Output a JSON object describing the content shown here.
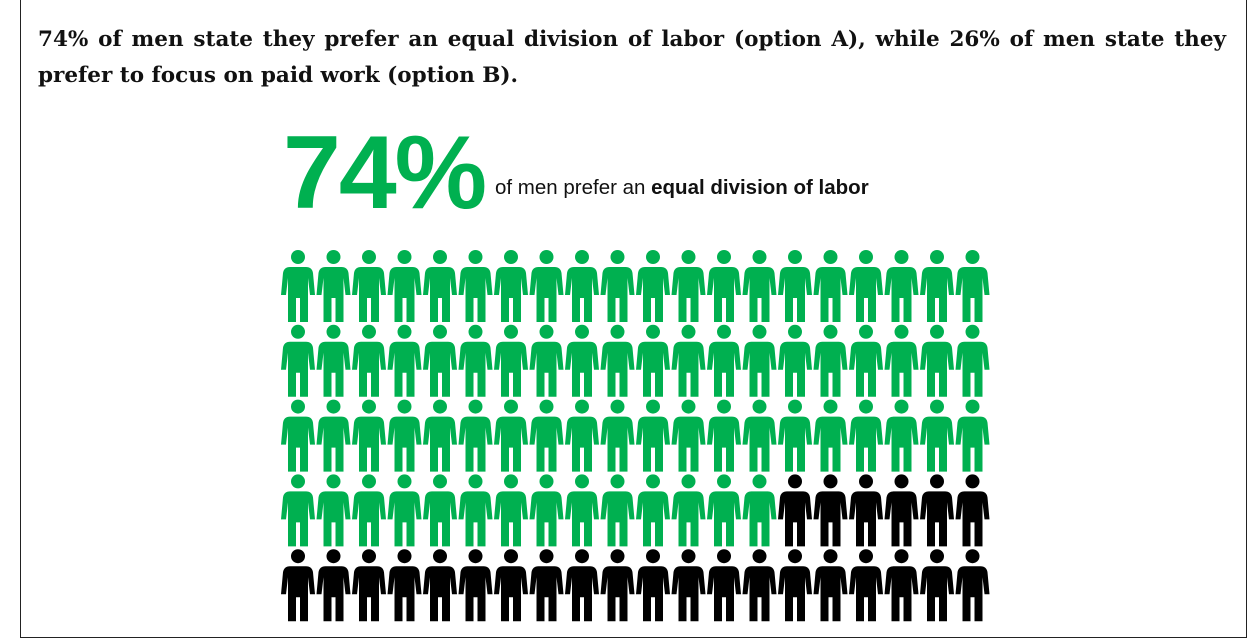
{
  "chart_data": {
    "type": "pictogram",
    "title": "74% of men state they prefer an equal division of labor (option A), while 26% of men state they prefer to focus on paid work (option B).",
    "values": [
      74,
      26
    ],
    "value_labels": [
      "74%",
      null
    ],
    "colors": [
      "#00b050",
      "#000000"
    ],
    "headline_text": "of men prefer an",
    "headline_emphasis": "equal division of labor"
  }
}
